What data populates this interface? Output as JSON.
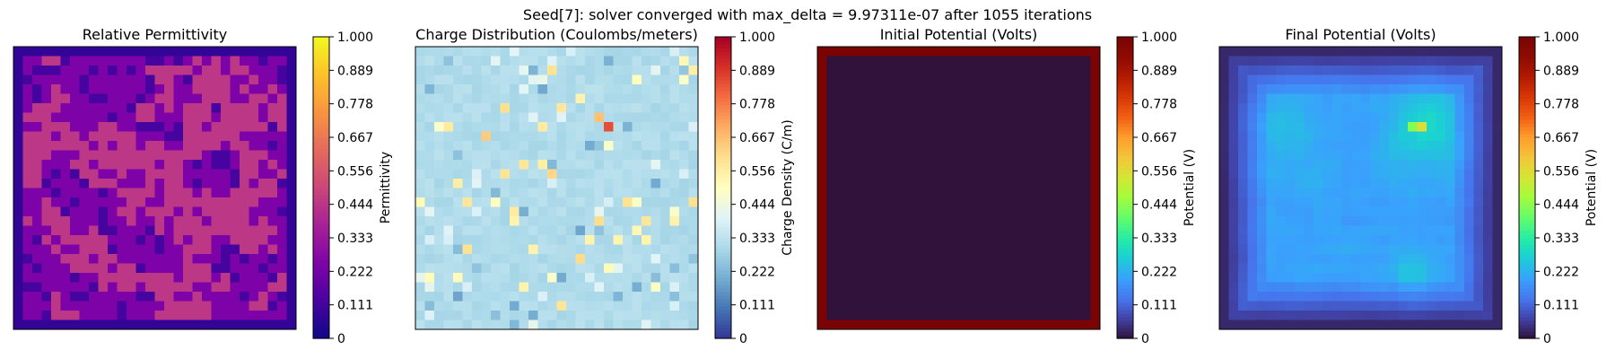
{
  "suptitle": "Seed[7]: solver converged with max_delta = 9.97311e-07 after 1055 iterations",
  "chart_data": [
    {
      "type": "heatmap",
      "title": "Relative Permittivity",
      "colormap": "plasma",
      "colorbar_label": "Permittivity",
      "colorbar_range": [
        0,
        1
      ],
      "colorbar_ticks": [
        "0",
        "0.111",
        "0.222",
        "0.333",
        "0.444",
        "0.556",
        "0.667",
        "0.778",
        "0.889",
        "1.000"
      ],
      "grid_size": [
        30,
        30
      ],
      "frame_edge": 1,
      "pattern": "binary blob field",
      "value_levels": [
        0.12,
        0.25,
        0.45
      ],
      "axis_ticks": false
    },
    {
      "type": "heatmap",
      "title": "Charge Distribution (Coulombs/meters)",
      "colormap": "RdYlBu_r",
      "colorbar_label": "Charge Density (C/m)",
      "colorbar_range": [
        0,
        1
      ],
      "colorbar_ticks": [
        "0",
        "0.111",
        "0.222",
        "0.333",
        "0.444",
        "0.556",
        "0.667",
        "0.778",
        "0.889",
        "1.000"
      ],
      "grid_size": [
        30,
        30
      ],
      "frame_edge": 0,
      "pattern": "sparse random point charges",
      "background_value": 0.31,
      "peak_value": 0.85,
      "axis_ticks": false
    },
    {
      "type": "heatmap",
      "title": "Initial Potential (Volts)",
      "colormap": "turbo",
      "colorbar_label": "Potential (V)",
      "colorbar_range": [
        0,
        1
      ],
      "colorbar_ticks": [
        "0",
        "0.111",
        "0.222",
        "0.333",
        "0.444",
        "0.556",
        "0.667",
        "0.778",
        "0.889",
        "1.000"
      ],
      "grid_size": [
        30,
        30
      ],
      "frame_edge": 0,
      "pattern": "boundary at 1 V, interior at 0 V",
      "boundary_value": 1.0,
      "interior_value": 0.0,
      "axis_ticks": false
    },
    {
      "type": "heatmap",
      "title": "Final Potential (Volts)",
      "colormap": "turbo",
      "colorbar_label": "Potential (V)",
      "colorbar_range": [
        0,
        1
      ],
      "colorbar_ticks": [
        "0",
        "0.111",
        "0.222",
        "0.333",
        "0.444",
        "0.556",
        "0.667",
        "0.778",
        "0.889",
        "1.000"
      ],
      "grid_size": [
        30,
        30
      ],
      "frame_edge": 1,
      "pattern": "relaxed potential, low at edges",
      "edge_value": 0.03,
      "interior_value": 0.2,
      "peak_value": 0.55,
      "axis_ticks": false
    }
  ]
}
